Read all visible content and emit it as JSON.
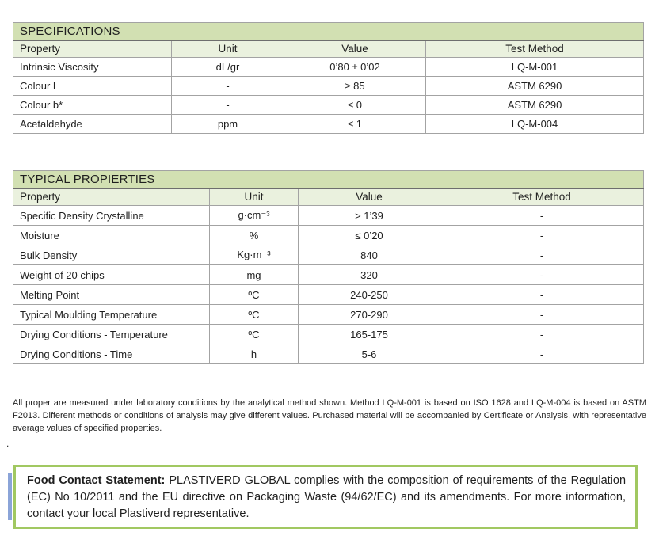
{
  "colors": {
    "table_title_bg": "#d2e0b2",
    "table_header_bg": "#eaf1de",
    "table_border": "#a3a3a3",
    "food_box_border": "#a1c861",
    "change_bar_blue": "#8ba4d8",
    "text": "#1f1f1f"
  },
  "spec_table": {
    "title": "SPECIFICATIONS",
    "columns": [
      "Property",
      "Unit",
      "Value",
      "Test Method"
    ],
    "rows": [
      {
        "property": "Intrinsic Viscosity",
        "unit": "dL/gr",
        "value": "0’80 ± 0’02",
        "method": "LQ-M-001"
      },
      {
        "property": "Colour L",
        "unit": "-",
        "value": "≥ 85",
        "method": "ASTM 6290"
      },
      {
        "property": "Colour b*",
        "unit": "-",
        "value": "≤ 0",
        "method": "ASTM 6290"
      },
      {
        "property": "Acetaldehyde",
        "unit": "ppm",
        "value": "≤ 1",
        "method": "LQ-M-004"
      }
    ]
  },
  "typical_table": {
    "title": "TYPICAL PROPIERTIES",
    "columns": [
      "Property",
      "Unit",
      "Value",
      "Test Method"
    ],
    "rows": [
      {
        "property": "Specific Density Crystalline",
        "unit": "g·cm⁻³",
        "value": "> 1’39",
        "method": "-"
      },
      {
        "property": "Moisture",
        "unit": "%",
        "value": "≤ 0’20",
        "method": "-"
      },
      {
        "property": "Bulk Density",
        "unit": "Kg·m⁻³",
        "value": "840",
        "method": "-"
      },
      {
        "property": "Weight of 20 chips",
        "unit": "mg",
        "value": "320",
        "method": "-"
      },
      {
        "property": "Melting Point",
        "unit": "ºC",
        "value": "240-250",
        "method": "-"
      },
      {
        "property": "Typical Moulding Temperature",
        "unit": "ºC",
        "value": "270-290",
        "method": "-"
      },
      {
        "property": "Drying Conditions - Temperature",
        "unit": "ºC",
        "value": "165-175",
        "method": "-"
      },
      {
        "property": "Drying Conditions - Time",
        "unit": "h",
        "value": "5-6",
        "method": "-"
      }
    ]
  },
  "disclaimer": "All proper are measured under laboratory conditions by the analytical method shown. Method LQ-M-001 is based on ISO 1628 and LQ-M-004 is based on ASTM F2013. Different methods or conditions of analysis may give different values. Purchased material will be accompanied by Certificate or Analysis, with representative average values of specified properties.",
  "stray_dot": ".",
  "food_statement": {
    "label": "Food Contact Statement:",
    "text": " PLASTIVERD GLOBAL complies with the composition of requirements of the Regulation (EC) No 10/2011 and the EU directive on Packaging Waste (94/62/EC) and its amendments. For more information, contact your local Plastiverd representative."
  }
}
